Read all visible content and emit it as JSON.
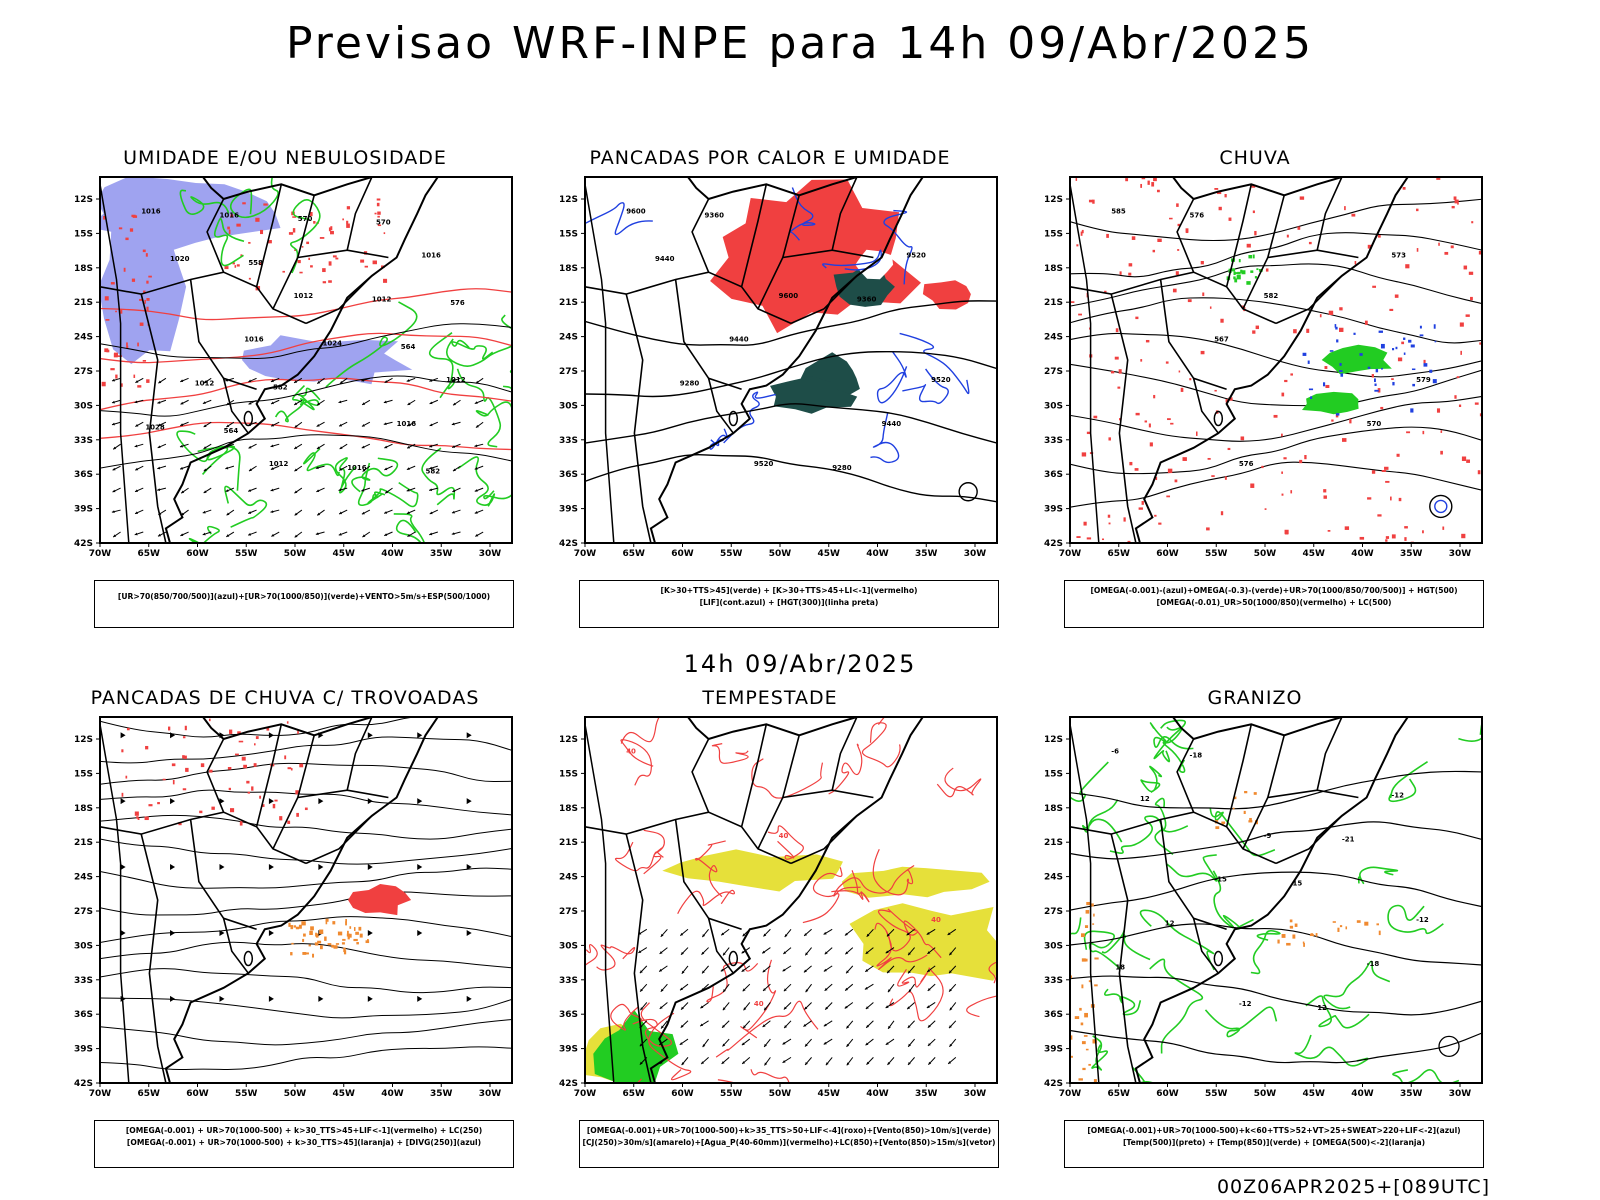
{
  "title": "Previsao WRF-INPE  para 14h 09/Abr/2025",
  "subtitle": "14h 09/Abr/2025",
  "footer": "00Z06APR2025+[089UTC]",
  "lat_labels": [
    "12S",
    "15S",
    "18S",
    "21S",
    "24S",
    "27S",
    "30S",
    "33S",
    "36S",
    "39S",
    "42S"
  ],
  "lon_labels": [
    "70W",
    "65W",
    "60W",
    "55W",
    "50W",
    "45W",
    "40W",
    "35W",
    "30W"
  ],
  "colors": {
    "blue_area": "#9fa3f0",
    "red": "#f04040",
    "green": "#22cc22",
    "dark_teal": "#1e4d48",
    "yellow": "#e6e03a",
    "orange": "#f08a30",
    "blue_line": "#2040e0"
  },
  "panels": [
    {
      "title": "UMIDADE E/OU NEBULOSIDADE",
      "legend": [
        "[UR>70(850/700/500)](azul)+[UR>70(1000/850)](verde)+VENTO>5m/s+ESP(500/1000)"
      ],
      "labels": [
        "1016",
        "1012",
        "1012",
        "1012",
        "1016",
        "1016",
        "1016",
        "1016",
        "1012",
        "1012",
        "1016",
        "1020",
        "1024",
        "1028",
        "570",
        "576",
        "582",
        "582",
        "558",
        "564",
        "564",
        "570"
      ]
    },
    {
      "title": "PANCADAS POR CALOR E UMIDADE",
      "legend": [
        "[K>30+TTS>45](verde) + [K>30+TTS>45+LI<-1](vermelho)",
        "[LIF](cont.azul) + [HGT(300)](linha preta)"
      ],
      "labels": [
        "9600",
        "9600",
        "9520",
        "9520",
        "9520",
        "9440",
        "9440",
        "9360",
        "9360",
        "9280",
        "9280",
        "9440"
      ]
    },
    {
      "title": "CHUVA",
      "legend": [
        "[OMEGA(-0.001)-(azul)+OMEGA(-0.3)-(verde)+UR>70(1000/850/700/500)] + HGT(500)",
        "[OMEGA(-0.01)_UR>50(1000/850)(vermelho) + LC(500)"
      ],
      "labels": [
        "585",
        "582",
        "579",
        "576",
        "573",
        "567",
        "570",
        "576"
      ]
    },
    {
      "title": "PANCADAS DE CHUVA C/ TROVOADAS",
      "legend": [
        "[OMEGA(-0.001) + UR>70(1000-500) + k>30_TTS>45+LIF<-1](vermelho) + LC(250)",
        "[OMEGA(-0.001) + UR>70(1000-500) + k>30_TTS>45](laranja) + [DIVG(250)](azul)"
      ],
      "labels": []
    },
    {
      "title": "TEMPESTADE",
      "legend": [
        "[OMEGA(-0.001)+UR>70(1000-500)+k>35_TTS>50+LIF<-4](roxo)+[Vento(850)>10m/s](verde)",
        "[CJ(250)>30m/s](amarelo)+[Agua_P(40-60mm)](vermelho)+LC(850)+[Vento(850)>15m/s](vetor)"
      ],
      "labels": [
        "40",
        "40",
        "40",
        "40"
      ]
    },
    {
      "title": "GRANIZO",
      "legend": [
        "[OMEGA(-0.001)+UR>70(1000-500)+k<60+TTS>52+VT>25+SWEAT>220+LIF<-2](azul)",
        "[Temp(500)](preto) + [Temp(850)](verde) + [OMEGA(500)<-2](laranja)"
      ],
      "labels": [
        "-6",
        "-9",
        "-12",
        "-12",
        "-12",
        "-15",
        "-18",
        "-18",
        "-21",
        "12",
        "12",
        "12",
        "15",
        "18"
      ]
    }
  ]
}
